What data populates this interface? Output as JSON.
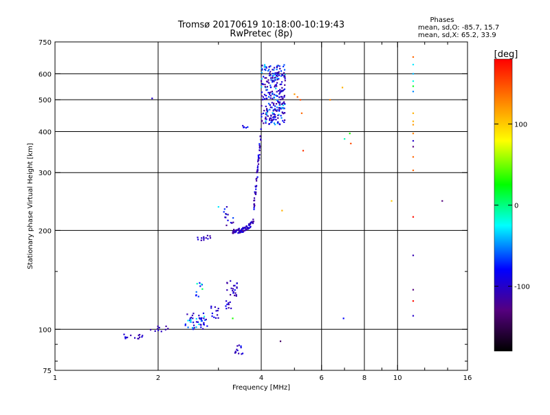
{
  "chart_data": {
    "type": "scatter",
    "title": "Tromsø 20170619 10:18:00-10:19:43",
    "subtitle": "RwPretec (8p)",
    "phases": {
      "heading": "Phases",
      "line_o": "mean, sd,O: -85.7, 15.7",
      "line_x": "mean, sd,X: 65.2, 33.9"
    },
    "xlabel": "Frequency [MHz]",
    "ylabel": "Stationary phase Virtual Height [km]",
    "xscale": "log",
    "yscale": "log",
    "xlim": [
      1,
      16
    ],
    "ylim": [
      75,
      750
    ],
    "xticks": [
      1,
      2,
      4,
      6,
      8,
      10,
      16
    ],
    "xtick_labels": [
      "1",
      "2",
      "4",
      "6",
      "8",
      "10",
      "16"
    ],
    "xgrid": [
      2,
      4,
      6,
      8,
      10
    ],
    "xminor": [
      3,
      5,
      7,
      9,
      12,
      14
    ],
    "yticks": [
      75,
      100,
      200,
      300,
      400,
      500,
      600,
      750
    ],
    "ytick_labels": [
      "75",
      "100",
      "200",
      "300",
      "400",
      "500",
      "600",
      "750"
    ],
    "ygrid": [
      100,
      200,
      300,
      400,
      500,
      600
    ],
    "yminor": [
      80,
      90,
      150
    ],
    "grid": true,
    "colorbar": {
      "label": "[deg]",
      "range": [
        -180,
        180
      ],
      "ticks": [
        100,
        0,
        -100
      ],
      "tick_labels": [
        "100",
        "0",
        "-100"
      ]
    },
    "clusters": [
      {
        "name": "E region low",
        "x": [
          1.55,
          1.8
        ],
        "y": [
          93,
          97
        ],
        "phase": [
          -115,
          -80
        ],
        "n": 14
      },
      {
        "name": "E region ramp",
        "x": [
          1.9,
          2.15
        ],
        "y": [
          98,
          104
        ],
        "phase": [
          -115,
          -90
        ],
        "n": 10
      },
      {
        "name": "Es trace",
        "x": [
          2.4,
          2.8
        ],
        "y": [
          100,
          112
        ],
        "phase": [
          -110,
          -20
        ],
        "n": 45
      },
      {
        "name": "Es upper",
        "x": [
          2.8,
          3.0
        ],
        "y": [
          108,
          118
        ],
        "phase": [
          -110,
          -80
        ],
        "n": 12
      },
      {
        "name": "Es patch",
        "x": [
          2.55,
          2.7
        ],
        "y": [
          125,
          140
        ],
        "phase": [
          -80,
          30
        ],
        "n": 10
      },
      {
        "name": "F1 cusp",
        "x": [
          3.15,
          3.4
        ],
        "y": [
          115,
          145
        ],
        "phase": [
          -120,
          -80
        ],
        "n": 30
      },
      {
        "name": "low echoes",
        "x": [
          3.35,
          3.55
        ],
        "y": [
          84,
          90
        ],
        "phase": [
          -110,
          -30
        ],
        "n": 12
      },
      {
        "name": "F1 lower",
        "x": [
          2.6,
          2.85
        ],
        "y": [
          186,
          194
        ],
        "phase": [
          -115,
          -90
        ],
        "n": 12
      },
      {
        "name": "F1 trace",
        "x": [
          3.3,
          3.8
        ],
        "y": [
          196,
          218
        ],
        "phase": [
          -120,
          -80
        ],
        "n": 90
      },
      {
        "name": "F1 scatter",
        "x": [
          3.1,
          3.35
        ],
        "y": [
          205,
          240
        ],
        "phase": [
          -120,
          -60
        ],
        "n": 14
      },
      {
        "name": "F2 rise",
        "x": [
          3.8,
          4.0
        ],
        "y": [
          220,
          420
        ],
        "phase": [
          -120,
          -70
        ],
        "n": 55
      },
      {
        "name": "F2 cluster A",
        "x": [
          4.0,
          4.35
        ],
        "y": [
          420,
          640
        ],
        "phase": [
          -120,
          -30
        ],
        "n": 130
      },
      {
        "name": "F2 cluster B",
        "x": [
          4.35,
          4.7
        ],
        "y": [
          420,
          640
        ],
        "phase": [
          -120,
          -30
        ],
        "n": 150
      },
      {
        "name": "F2 isolated",
        "x": [
          3.5,
          3.65
        ],
        "y": [
          410,
          422
        ],
        "phase": [
          -100,
          -70
        ],
        "n": 5
      }
    ],
    "points": [
      {
        "x": 1.92,
        "y": 505,
        "phase": -100
      },
      {
        "x": 3.0,
        "y": 236,
        "phase": -30
      },
      {
        "x": 3.3,
        "y": 108,
        "phase": 30
      },
      {
        "x": 4.55,
        "y": 92,
        "phase": -140
      },
      {
        "x": 4.6,
        "y": 230,
        "phase": 110
      },
      {
        "x": 5.0,
        "y": 520,
        "phase": 120
      },
      {
        "x": 5.1,
        "y": 510,
        "phase": 140
      },
      {
        "x": 5.2,
        "y": 500,
        "phase": 150
      },
      {
        "x": 5.25,
        "y": 455,
        "phase": 140
      },
      {
        "x": 5.3,
        "y": 350,
        "phase": 160
      },
      {
        "x": 6.35,
        "y": 500,
        "phase": 130
      },
      {
        "x": 6.9,
        "y": 545,
        "phase": 110
      },
      {
        "x": 6.95,
        "y": 108,
        "phase": -80
      },
      {
        "x": 7.0,
        "y": 380,
        "phase": -10
      },
      {
        "x": 7.25,
        "y": 395,
        "phase": 30
      },
      {
        "x": 7.3,
        "y": 368,
        "phase": 150
      },
      {
        "x": 9.6,
        "y": 246,
        "phase": 100
      },
      {
        "x": 11.1,
        "y": 675,
        "phase": 140
      },
      {
        "x": 11.1,
        "y": 640,
        "phase": -30
      },
      {
        "x": 11.1,
        "y": 600,
        "phase": -40
      },
      {
        "x": 11.1,
        "y": 570,
        "phase": -20
      },
      {
        "x": 11.1,
        "y": 550,
        "phase": 20
      },
      {
        "x": 11.1,
        "y": 530,
        "phase": -50
      },
      {
        "x": 11.1,
        "y": 455,
        "phase": 110
      },
      {
        "x": 11.1,
        "y": 430,
        "phase": 110
      },
      {
        "x": 11.1,
        "y": 420,
        "phase": 120
      },
      {
        "x": 11.1,
        "y": 395,
        "phase": 130
      },
      {
        "x": 11.1,
        "y": 375,
        "phase": -100
      },
      {
        "x": 11.1,
        "y": 360,
        "phase": -130
      },
      {
        "x": 11.1,
        "y": 335,
        "phase": 140
      },
      {
        "x": 11.1,
        "y": 305,
        "phase": 140
      },
      {
        "x": 11.1,
        "y": 220,
        "phase": 175
      },
      {
        "x": 11.1,
        "y": 168,
        "phase": -110
      },
      {
        "x": 11.1,
        "y": 132,
        "phase": -130
      },
      {
        "x": 11.1,
        "y": 122,
        "phase": 175
      },
      {
        "x": 11.1,
        "y": 110,
        "phase": -100
      },
      {
        "x": 13.5,
        "y": 246,
        "phase": -130
      }
    ]
  }
}
